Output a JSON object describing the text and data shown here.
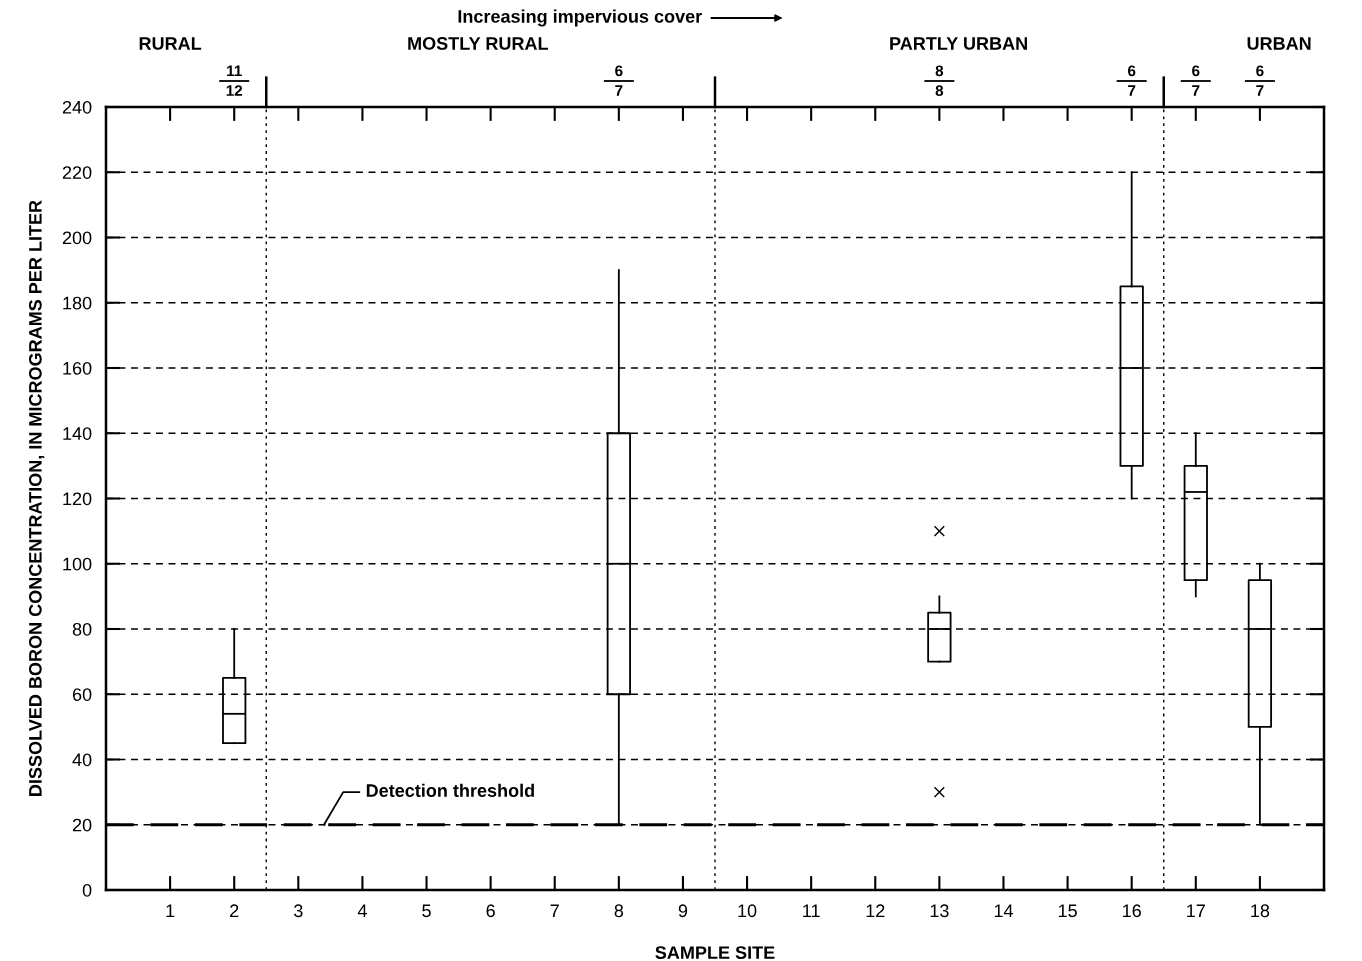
{
  "chart_data": {
    "type": "box",
    "xlabel": "SAMPLE SITE",
    "ylabel": "DISSOLVED BORON CONCENTRATION, IN MICROGRAMS PER LITER",
    "x": [
      2,
      8,
      13,
      16,
      17,
      18
    ],
    "xlim": [
      0,
      19
    ],
    "xticks": [
      1,
      2,
      3,
      4,
      5,
      6,
      7,
      8,
      9,
      10,
      11,
      12,
      13,
      14,
      15,
      16,
      17,
      18
    ],
    "ylim": [
      0,
      240
    ],
    "yticks": [
      0,
      20,
      40,
      60,
      80,
      100,
      120,
      140,
      160,
      180,
      200,
      220,
      240
    ],
    "grid": "y",
    "line_style": "dashed",
    "boxes": [
      {
        "low": 45,
        "q1": 45,
        "median": 54,
        "q3": 65,
        "high": 80
      },
      {
        "low": 20,
        "q1": 60,
        "median": 100,
        "q3": 140,
        "high": 190
      },
      {
        "low": 70,
        "q1": 70,
        "median": 80,
        "q3": 85,
        "high": 90,
        "outliers": [
          110,
          30
        ]
      },
      {
        "low": 120,
        "q1": 130,
        "median": 160,
        "q3": 185,
        "high": 220
      },
      {
        "low": 90,
        "q1": 95,
        "median": 122,
        "q3": 130,
        "high": 140
      },
      {
        "low": 20,
        "q1": 50,
        "median": 80,
        "q3": 95,
        "high": 100
      }
    ],
    "ref_lines": [
      {
        "axis": "y",
        "value": 20,
        "label": "Detection threshold",
        "line_style": "dashed"
      },
      {
        "axis": "x",
        "value": 2.5,
        "line_style": "dotted"
      },
      {
        "axis": "x",
        "value": 9.5,
        "line_style": "dotted"
      },
      {
        "axis": "x",
        "value": 16.5,
        "line_style": "dotted"
      }
    ],
    "annotations": [
      "Increasing impervious cover",
      "RURAL",
      "MOSTLY RURAL",
      "PARTLY URBAN",
      "URBAN",
      {
        "text": "11\n12",
        "x": 2
      },
      {
        "text": "6\n7",
        "x": 8
      },
      {
        "text": "8\n8",
        "x": 13
      },
      {
        "text": "6\n7",
        "x": 16
      },
      {
        "text": "6\n7",
        "x": 17
      },
      {
        "text": "6\n7",
        "x": 18
      }
    ]
  }
}
